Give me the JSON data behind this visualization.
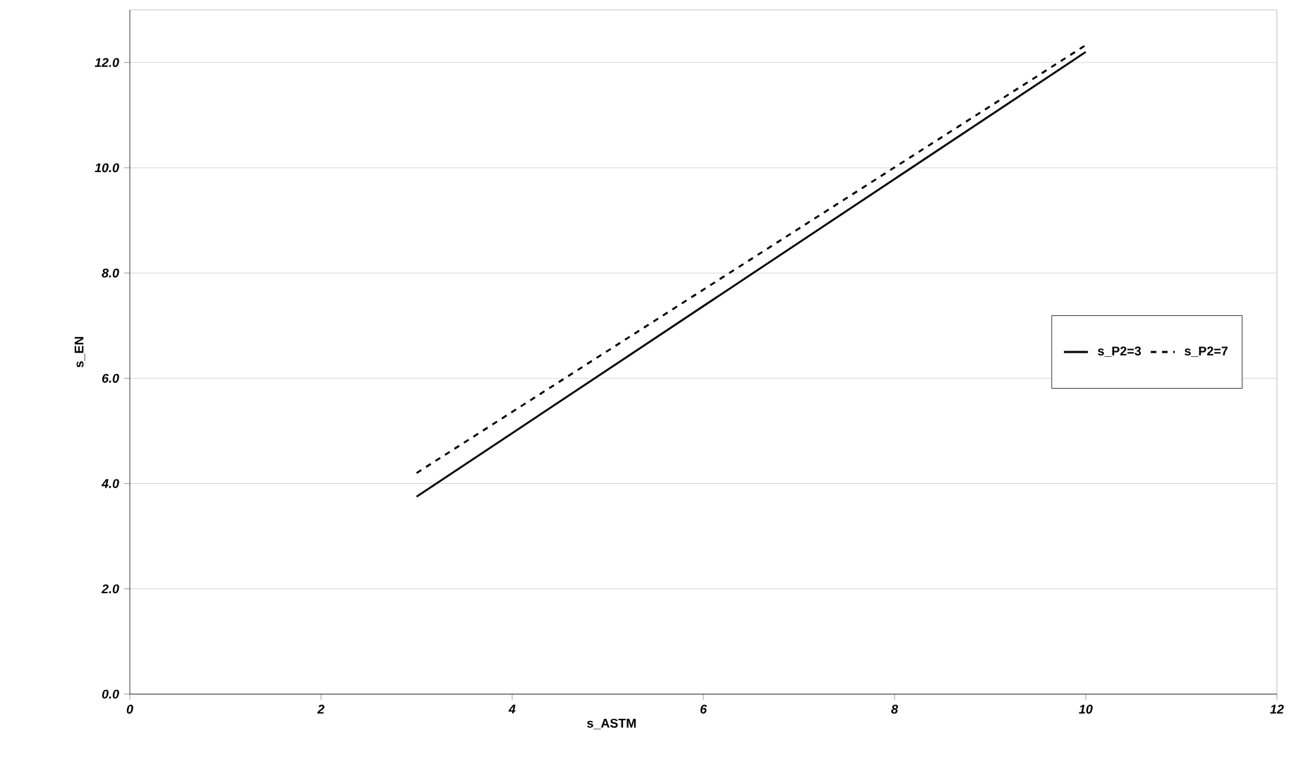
{
  "chart_data": {
    "type": "line",
    "xlabel": "s_ASTM",
    "ylabel": "s_EN",
    "xlim": [
      0,
      12
    ],
    "xticks": [
      0,
      2,
      4,
      6,
      8,
      10,
      12
    ],
    "ylim": [
      0,
      13
    ],
    "yticks": [
      {
        "value": 0,
        "label": "0.0"
      },
      {
        "value": 2,
        "label": "2.0"
      },
      {
        "value": 4,
        "label": "4.0"
      },
      {
        "value": 6,
        "label": "6.0"
      },
      {
        "value": 8,
        "label": "8.0"
      },
      {
        "value": 10,
        "label": "10.0"
      },
      {
        "value": 12,
        "label": "12.0"
      }
    ],
    "x": [
      3,
      10
    ],
    "grid": "y",
    "legend": "right",
    "marker": "none",
    "series": [
      {
        "name": "s_P2=3",
        "color": "#000000",
        "line_style": "solid",
        "values": [
          3.75,
          12.2
        ]
      },
      {
        "name": "s_P2=7",
        "color": "#000000",
        "line_style": "dashed",
        "values": [
          4.2,
          12.33
        ]
      }
    ]
  }
}
